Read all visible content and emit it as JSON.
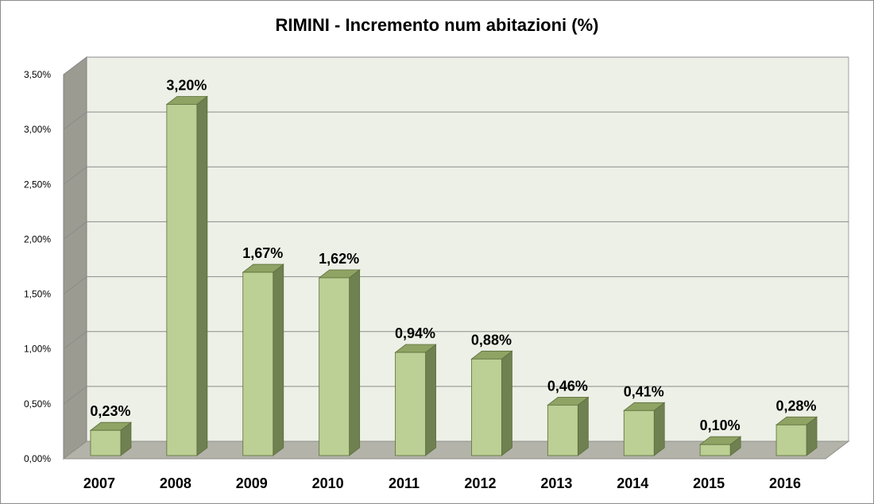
{
  "chart_data": {
    "type": "bar",
    "title": "RIMINI - Incremento num abitazioni (%)",
    "xlabel": "",
    "ylabel": "",
    "categories": [
      "2007",
      "2008",
      "2009",
      "2010",
      "2011",
      "2012",
      "2013",
      "2014",
      "2015",
      "2016"
    ],
    "values": [
      0.23,
      3.2,
      1.67,
      1.62,
      0.94,
      0.88,
      0.46,
      0.41,
      0.1,
      0.28
    ],
    "data_labels": [
      "0,23%",
      "3,20%",
      "1,67%",
      "1,62%",
      "0,94%",
      "0,88%",
      "0,46%",
      "0,41%",
      "0,10%",
      "0,28%"
    ],
    "ylim": [
      0,
      3.5
    ],
    "y_ticks": [
      0,
      0.5,
      1.0,
      1.5,
      2.0,
      2.5,
      3.0,
      3.5
    ],
    "y_tick_labels": [
      "0,00%",
      "0,50%",
      "1,00%",
      "1,50%",
      "2,00%",
      "2,50%",
      "3,00%",
      "3,50%"
    ],
    "grid": true,
    "legend": "none",
    "style": "3d-column",
    "colors": {
      "bar_front": "#bccf94",
      "bar_top": "#8fa364",
      "bar_side": "#6f8150",
      "bar_edge": "#5d6e3c",
      "wall": "#edf0e6",
      "side_wall": "#9b9b92",
      "floor": "#b3b3aa",
      "gridline": "#8c8c8c"
    }
  }
}
